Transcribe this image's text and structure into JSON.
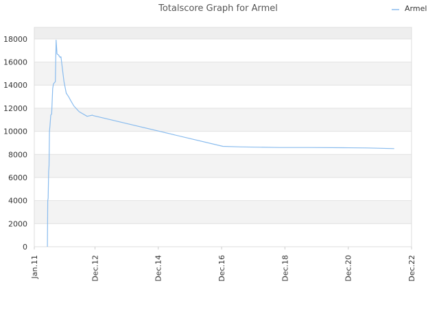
{
  "chart_data": {
    "type": "line",
    "title": "Totalscore Graph for Armel",
    "xlabel": "",
    "ylabel": "",
    "ylim": [
      0,
      19000
    ],
    "yticks": [
      0,
      2000,
      4000,
      6000,
      8000,
      10000,
      12000,
      14000,
      16000,
      18000
    ],
    "ytick_labels": [
      "0",
      "2000",
      "4000",
      "6000",
      "8000",
      "10000",
      "12000",
      "14000",
      "16000",
      "18000"
    ],
    "x_axis_type": "date",
    "xlim": [
      "2011-01-01",
      "2022-12-01"
    ],
    "xticks": [
      "2011-01-01",
      "2012-12-01",
      "2014-12-01",
      "2016-12-01",
      "2018-12-01",
      "2020-12-01",
      "2022-12-01"
    ],
    "xtick_labels": [
      "Jan.11",
      "Dec.12",
      "Dec.14",
      "Dec.16",
      "Dec.18",
      "Dec.20",
      "Dec.22"
    ],
    "grid": true,
    "alternating_bands": true,
    "legend_position": "top-right",
    "line_color": "#88bbee",
    "series": [
      {
        "name": "Armel",
        "x": [
          "2011-06-01",
          "2011-06-05",
          "2011-06-10",
          "2011-06-15",
          "2011-06-20",
          "2011-06-25",
          "2011-07-01",
          "2011-07-10",
          "2011-07-20",
          "2011-08-01",
          "2011-08-10",
          "2011-08-20",
          "2011-09-01",
          "2011-09-10",
          "2011-09-20",
          "2011-10-01",
          "2011-10-10",
          "2011-10-15",
          "2011-10-20",
          "2011-10-25",
          "2011-11-05",
          "2011-11-20",
          "2011-12-10",
          "2012-01-05",
          "2012-02-01",
          "2012-03-01",
          "2012-04-01",
          "2012-06-01",
          "2012-09-01",
          "2012-11-01",
          "2012-11-15",
          "2012-12-15",
          "2016-12-15",
          "2017-07-01",
          "2018-10-01",
          "2019-09-01",
          "2020-10-01",
          "2021-07-01",
          "2022-05-15"
        ],
        "values": [
          0,
          4000,
          4200,
          6500,
          7000,
          10000,
          10500,
          11400,
          11500,
          13700,
          14100,
          14200,
          14300,
          17900,
          16700,
          16650,
          16600,
          16500,
          16500,
          16400,
          16450,
          15500,
          14300,
          13300,
          13000,
          12600,
          12200,
          11700,
          11300,
          11400,
          11350,
          11300,
          8700,
          8650,
          8600,
          8600,
          8580,
          8560,
          8500
        ]
      }
    ]
  }
}
